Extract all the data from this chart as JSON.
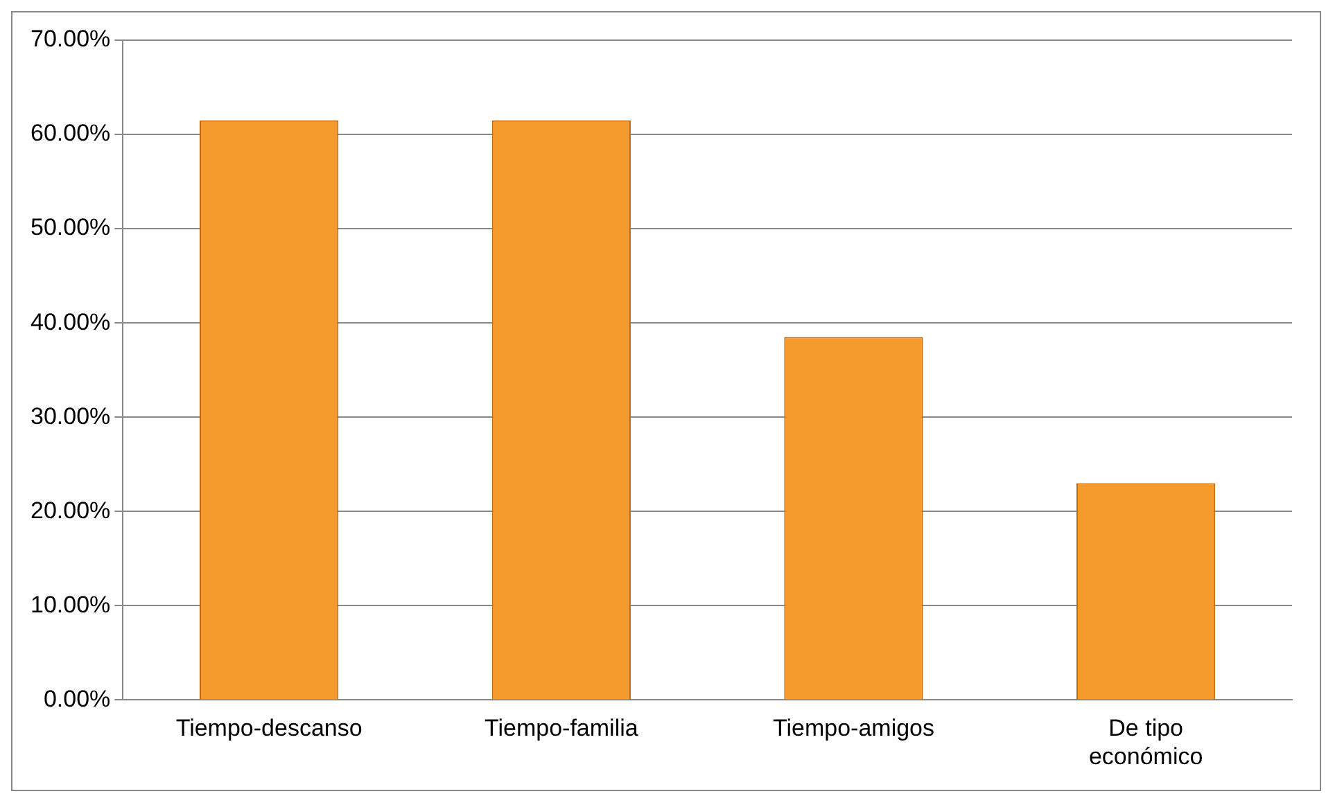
{
  "chart_data": {
    "type": "bar",
    "categories": [
      "Tiempo-descanso",
      "Tiempo-familia",
      "Tiempo-amigos",
      "De tipo económico"
    ],
    "values": [
      61.5,
      61.5,
      38.5,
      23
    ],
    "color": "#f59a2c",
    "ylim": [
      0,
      70
    ],
    "yticks": [
      {
        "value": 0,
        "label": "0.00%"
      },
      {
        "value": 10,
        "label": "10.00%"
      },
      {
        "value": 20,
        "label": "20.00%"
      },
      {
        "value": 30,
        "label": "30.00%"
      },
      {
        "value": 40,
        "label": "40.00%"
      },
      {
        "value": 50,
        "label": "50.00%"
      },
      {
        "value": 60,
        "label": "60.00%"
      },
      {
        "value": 70,
        "label": "70.00%"
      }
    ],
    "grid": "y",
    "legend": false
  }
}
